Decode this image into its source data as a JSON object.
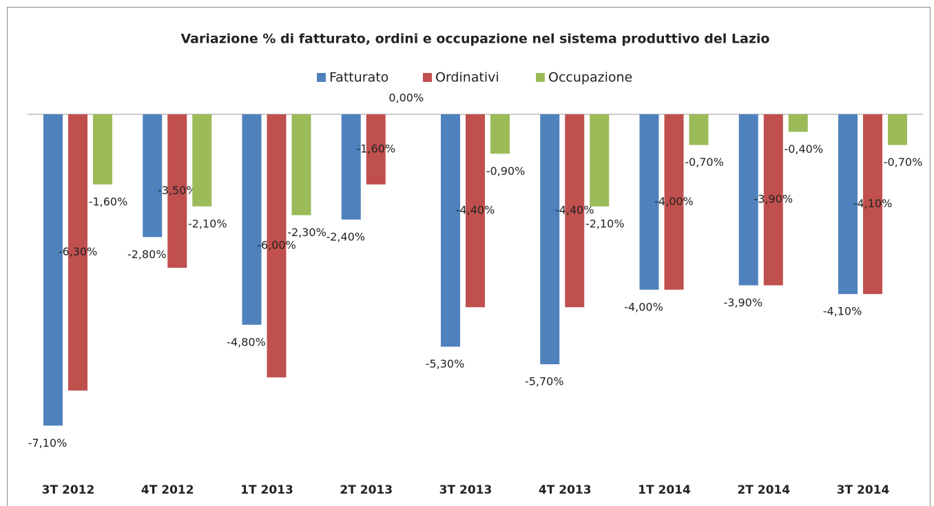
{
  "chart_data": {
    "type": "bar",
    "title": "Variazione % di fatturato, ordini e occupazione nel sistema produttivo del Lazio",
    "categories": [
      "3T 2012",
      "4T 2012",
      "1T 2013",
      "2T 2013",
      "3T 2013",
      "4T 2013",
      "1T 2014",
      "2T 2014",
      "3T 2014"
    ],
    "series": [
      {
        "name": "Fatturato",
        "color": "#4f81bd",
        "values": [
          -7.1,
          -2.8,
          -4.8,
          -2.4,
          -5.3,
          -5.7,
          -4.0,
          -3.9,
          -4.1
        ],
        "value_labels": [
          "-7,10%",
          "-2,80%",
          "-4,80%",
          "-2,40%",
          "-5,30%",
          "-5,70%",
          "-4,00%",
          "-3,90%",
          "-4,10%"
        ]
      },
      {
        "name": "Ordinativi",
        "color": "#c0504d",
        "values": [
          -6.3,
          -3.5,
          -6.0,
          -1.6,
          -4.4,
          -4.4,
          -4.0,
          -3.9,
          -4.1
        ],
        "value_labels": [
          "-6,30%",
          "-3,50%",
          "-6,00%",
          "-1,60%",
          "-4,40%",
          "-4,40%",
          "-4,00%",
          "-3,90%",
          "-4,10%"
        ]
      },
      {
        "name": "Occupazione",
        "color": "#9bbb59",
        "values": [
          -1.6,
          -2.1,
          -2.3,
          0.0,
          -0.9,
          -2.1,
          -0.7,
          -0.4,
          -0.7
        ],
        "value_labels": [
          "-1,60%",
          "-2,10%",
          "-2,30%",
          "0,00%",
          "-0,90%",
          "-2,10%",
          "-0,70%",
          "-0,40%",
          "-0,70%"
        ]
      }
    ],
    "legend": "top"
  }
}
